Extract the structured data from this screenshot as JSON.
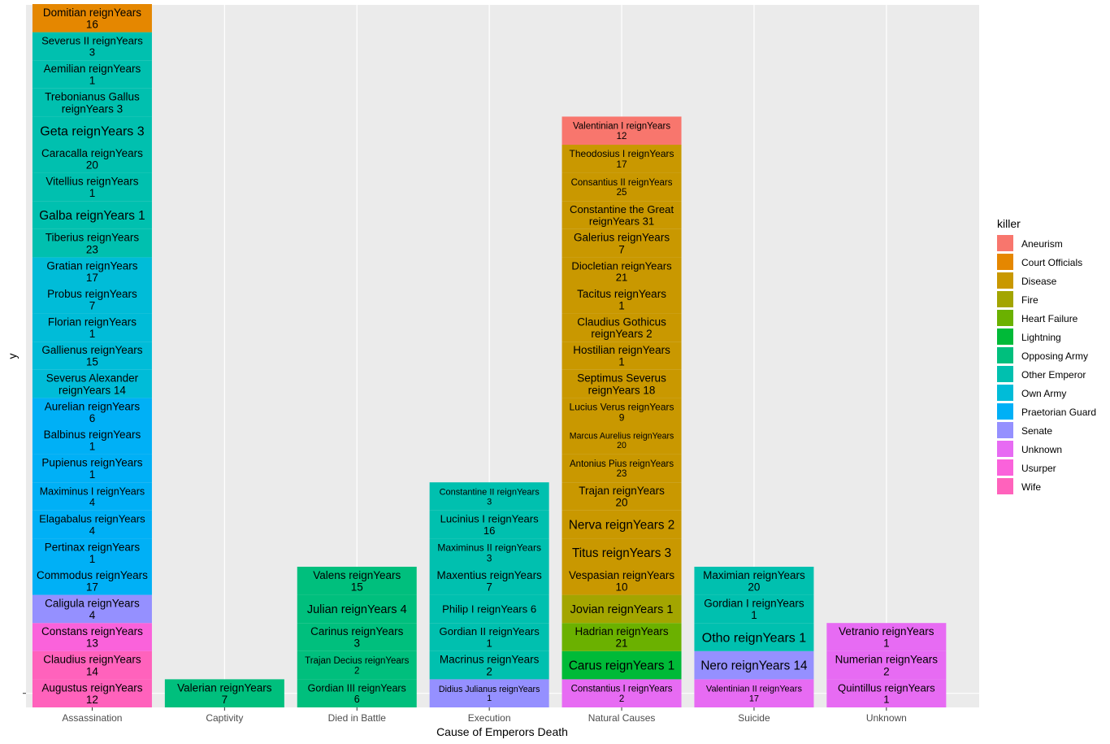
{
  "chart_data": {
    "type": "bar",
    "stacked": true,
    "xlabel": "Cause of Emperors Death",
    "ylabel": "y",
    "legend_title": "killer",
    "legend_position": "right",
    "grid": true,
    "categories": [
      "Assassination",
      "Captivity",
      "Died in Battle",
      "Execution",
      "Natural Causes",
      "Suicide",
      "Unknown"
    ],
    "killers": [
      {
        "name": "Aneurism",
        "color": "#F8766D"
      },
      {
        "name": "Court Officials",
        "color": "#E58700"
      },
      {
        "name": "Disease",
        "color": "#C99800"
      },
      {
        "name": "Fire",
        "color": "#A3A500"
      },
      {
        "name": "Heart Failure",
        "color": "#6BB100"
      },
      {
        "name": "Lightning",
        "color": "#00BA38"
      },
      {
        "name": "Opposing Army",
        "color": "#00BF7D"
      },
      {
        "name": "Other Emperor",
        "color": "#00C0AF"
      },
      {
        "name": "Own Army",
        "color": "#00BCD8"
      },
      {
        "name": "Praetorian Guard",
        "color": "#00B0F6"
      },
      {
        "name": "Senate",
        "color": "#9590FF"
      },
      {
        "name": "Unknown",
        "color": "#E76BF3"
      },
      {
        "name": "Usurper",
        "color": "#FA62DB"
      },
      {
        "name": "Wife",
        "color": "#FF62BC"
      }
    ],
    "y_tick_value": 0,
    "stacks": [
      {
        "category": "Assassination",
        "segments": [
          {
            "label": "Augustus reignYears 12",
            "lines": [
              "Augustus reignYears",
              "12"
            ],
            "killer": "Wife"
          },
          {
            "label": "Claudius reignYears 14",
            "lines": [
              "Claudius reignYears",
              "14"
            ],
            "killer": "Wife"
          },
          {
            "label": "Constans reignYears 13",
            "lines": [
              "Constans reignYears",
              "13"
            ],
            "killer": "Usurper"
          },
          {
            "label": "Caligula reignYears 4",
            "lines": [
              "Caligula reignYears",
              "4"
            ],
            "killer": "Senate"
          },
          {
            "label": "Commodus reignYears 17",
            "lines": [
              "Commodus reignYears",
              "17"
            ],
            "killer": "Praetorian Guard"
          },
          {
            "label": "Pertinax reignYears 1",
            "lines": [
              "Pertinax reignYears",
              "1"
            ],
            "killer": "Praetorian Guard"
          },
          {
            "label": "Elagabalus reignYears 4",
            "lines": [
              "Elagabalus reignYears",
              "4"
            ],
            "killer": "Praetorian Guard"
          },
          {
            "label": "Maximinus I reignYears 4",
            "lines": [
              "Maximinus I reignYears",
              "4"
            ],
            "killer": "Praetorian Guard"
          },
          {
            "label": "Pupienus reignYears 1",
            "lines": [
              "Pupienus reignYears",
              "1"
            ],
            "killer": "Praetorian Guard"
          },
          {
            "label": "Balbinus reignYears 1",
            "lines": [
              "Balbinus reignYears",
              "1"
            ],
            "killer": "Praetorian Guard"
          },
          {
            "label": "Aurelian reignYears 6",
            "lines": [
              "Aurelian reignYears",
              "6"
            ],
            "killer": "Praetorian Guard"
          },
          {
            "label": "Severus Alexander reignYears 14",
            "lines": [
              "Severus Alexander",
              "reignYears 14"
            ],
            "killer": "Own Army"
          },
          {
            "label": "Gallienus reignYears 15",
            "lines": [
              "Gallienus reignYears",
              "15"
            ],
            "killer": "Own Army"
          },
          {
            "label": "Florian reignYears 1",
            "lines": [
              "Florian reignYears",
              "1"
            ],
            "killer": "Own Army"
          },
          {
            "label": "Probus reignYears 7",
            "lines": [
              "Probus reignYears",
              "7"
            ],
            "killer": "Own Army"
          },
          {
            "label": "Gratian reignYears 17",
            "lines": [
              "Gratian reignYears",
              "17"
            ],
            "killer": "Own Army"
          },
          {
            "label": "Tiberius reignYears 23",
            "lines": [
              "Tiberius reignYears",
              "23"
            ],
            "killer": "Other Emperor"
          },
          {
            "label": "Galba reignYears 1",
            "lines": [
              "Galba reignYears 1"
            ],
            "killer": "Other Emperor"
          },
          {
            "label": "Vitellius reignYears 1",
            "lines": [
              "Vitellius reignYears",
              "1"
            ],
            "killer": "Other Emperor"
          },
          {
            "label": "Caracalla reignYears 20",
            "lines": [
              "Caracalla reignYears",
              "20"
            ],
            "killer": "Other Emperor"
          },
          {
            "label": "Geta reignYears 3",
            "lines": [
              "Geta reignYears 3"
            ],
            "killer": "Other Emperor"
          },
          {
            "label": "Trebonianus Gallus reignYears 3",
            "lines": [
              "Trebonianus Gallus",
              "reignYears 3"
            ],
            "killer": "Other Emperor"
          },
          {
            "label": "Aemilian reignYears 1",
            "lines": [
              "Aemilian reignYears",
              "1"
            ],
            "killer": "Other Emperor"
          },
          {
            "label": "Severus II reignYears 3",
            "lines": [
              "Severus II reignYears",
              "3"
            ],
            "killer": "Other Emperor"
          },
          {
            "label": "Domitian reignYears 16",
            "lines": [
              "Domitian reignYears",
              "16"
            ],
            "killer": "Court Officials"
          }
        ]
      },
      {
        "category": "Captivity",
        "segments": [
          {
            "label": "Valerian reignYears 7",
            "lines": [
              "Valerian reignYears",
              "7"
            ],
            "killer": "Opposing Army"
          }
        ]
      },
      {
        "category": "Died in Battle",
        "segments": [
          {
            "label": "Gordian III reignYears 6",
            "lines": [
              "Gordian III reignYears",
              "6"
            ],
            "killer": "Opposing Army"
          },
          {
            "label": "Trajan Decius reignYears 2",
            "lines": [
              "Trajan Decius reignYears",
              "2"
            ],
            "killer": "Opposing Army"
          },
          {
            "label": "Carinus reignYears 3",
            "lines": [
              "Carinus reignYears",
              "3"
            ],
            "killer": "Opposing Army"
          },
          {
            "label": "Julian reignYears 4",
            "lines": [
              "Julian reignYears 4"
            ],
            "killer": "Opposing Army"
          },
          {
            "label": "Valens reignYears 15",
            "lines": [
              "Valens reignYears",
              "15"
            ],
            "killer": "Opposing Army"
          }
        ]
      },
      {
        "category": "Execution",
        "segments": [
          {
            "label": "Didius Julianus reignYears 1",
            "lines": [
              "Didius Julianus reignYears",
              "1"
            ],
            "killer": "Senate"
          },
          {
            "label": "Macrinus reignYears 2",
            "lines": [
              "Macrinus reignYears",
              "2"
            ],
            "killer": "Other Emperor"
          },
          {
            "label": "Gordian II reignYears 1",
            "lines": [
              "Gordian II reignYears",
              "1"
            ],
            "killer": "Other Emperor"
          },
          {
            "label": "Philip I reignYears 6",
            "lines": [
              "Philip I reignYears 6"
            ],
            "killer": "Other Emperor"
          },
          {
            "label": "Maxentius reignYears 7",
            "lines": [
              "Maxentius reignYears",
              "7"
            ],
            "killer": "Other Emperor"
          },
          {
            "label": "Maximinus II reignYears 3",
            "lines": [
              "Maximinus II reignYears",
              "3"
            ],
            "killer": "Other Emperor"
          },
          {
            "label": "Lucinius I reignYears 16",
            "lines": [
              "Lucinius I reignYears",
              "16"
            ],
            "killer": "Other Emperor"
          },
          {
            "label": "Constantine II reignYears 3",
            "lines": [
              "Constantine II reignYears",
              "3"
            ],
            "killer": "Other Emperor"
          }
        ]
      },
      {
        "category": "Natural Causes",
        "segments": [
          {
            "label": "Constantius I reignYears 2",
            "lines": [
              "Constantius I reignYears",
              "2"
            ],
            "killer": "Unknown"
          },
          {
            "label": "Carus reignYears 1",
            "lines": [
              "Carus reignYears 1"
            ],
            "killer": "Lightning"
          },
          {
            "label": "Hadrian reignYears 21",
            "lines": [
              "Hadrian reignYears",
              "21"
            ],
            "killer": "Heart Failure"
          },
          {
            "label": "Jovian reignYears 1",
            "lines": [
              "Jovian reignYears 1"
            ],
            "killer": "Fire"
          },
          {
            "label": "Vespasian reignYears 10",
            "lines": [
              "Vespasian reignYears",
              "10"
            ],
            "killer": "Disease"
          },
          {
            "label": "Titus reignYears 3",
            "lines": [
              "Titus reignYears 3"
            ],
            "killer": "Disease"
          },
          {
            "label": "Nerva reignYears 2",
            "lines": [
              "Nerva reignYears 2"
            ],
            "killer": "Disease"
          },
          {
            "label": "Trajan reignYears 20",
            "lines": [
              "Trajan reignYears",
              "20"
            ],
            "killer": "Disease"
          },
          {
            "label": "Antonius Pius reignYears 23",
            "lines": [
              "Antonius Pius reignYears",
              "23"
            ],
            "killer": "Disease"
          },
          {
            "label": "Marcus Aurelius reignYears 20",
            "lines": [
              "Marcus Aurelius reignYears",
              "20"
            ],
            "killer": "Disease"
          },
          {
            "label": "Lucius Verus reignYears 9",
            "lines": [
              "Lucius Verus reignYears",
              "9"
            ],
            "killer": "Disease"
          },
          {
            "label": "Septimus Severus reignYears 18",
            "lines": [
              "Septimus Severus",
              "reignYears 18"
            ],
            "killer": "Disease"
          },
          {
            "label": "Hostilian reignYears 1",
            "lines": [
              "Hostilian reignYears",
              "1"
            ],
            "killer": "Disease"
          },
          {
            "label": "Claudius Gothicus reignYears 2",
            "lines": [
              "Claudius Gothicus",
              "reignYears 2"
            ],
            "killer": "Disease"
          },
          {
            "label": "Tacitus reignYears 1",
            "lines": [
              "Tacitus reignYears",
              "1"
            ],
            "killer": "Disease"
          },
          {
            "label": "Diocletian reignYears 21",
            "lines": [
              "Diocletian reignYears",
              "21"
            ],
            "killer": "Disease"
          },
          {
            "label": "Galerius reignYears 7",
            "lines": [
              "Galerius reignYears",
              "7"
            ],
            "killer": "Disease"
          },
          {
            "label": "Constantine the Great reignYears 31",
            "lines": [
              "Constantine the Great",
              "reignYears 31"
            ],
            "killer": "Disease"
          },
          {
            "label": "Consantius II reignYears 25",
            "lines": [
              "Consantius II reignYears",
              "25"
            ],
            "killer": "Disease"
          },
          {
            "label": "Theodosius I reignYears 17",
            "lines": [
              "Theodosius I reignYears",
              "17"
            ],
            "killer": "Disease"
          },
          {
            "label": "Valentinian I reignYears 12",
            "lines": [
              "Valentinian I reignYears",
              "12"
            ],
            "killer": "Aneurism"
          }
        ]
      },
      {
        "category": "Suicide",
        "segments": [
          {
            "label": "Valentinian II reignYears 17",
            "lines": [
              "Valentinian II reignYears",
              "17"
            ],
            "killer": "Unknown"
          },
          {
            "label": "Nero reignYears 14",
            "lines": [
              "Nero reignYears 14"
            ],
            "killer": "Senate"
          },
          {
            "label": "Otho reignYears 1",
            "lines": [
              "Otho reignYears 1"
            ],
            "killer": "Other Emperor"
          },
          {
            "label": "Gordian I reignYears 1",
            "lines": [
              "Gordian I reignYears",
              "1"
            ],
            "killer": "Other Emperor"
          },
          {
            "label": "Maximian reignYears 20",
            "lines": [
              "Maximian reignYears",
              "20"
            ],
            "killer": "Other Emperor"
          }
        ]
      },
      {
        "category": "Unknown",
        "segments": [
          {
            "label": "Quintillus reignYears 1",
            "lines": [
              "Quintillus reignYears",
              "1"
            ],
            "killer": "Unknown"
          },
          {
            "label": "Numerian reignYears 2",
            "lines": [
              "Numerian reignYears",
              "2"
            ],
            "killer": "Unknown"
          },
          {
            "label": "Vetranio reignYears 1",
            "lines": [
              "Vetranio reignYears",
              "1"
            ],
            "killer": "Unknown"
          }
        ]
      }
    ]
  }
}
